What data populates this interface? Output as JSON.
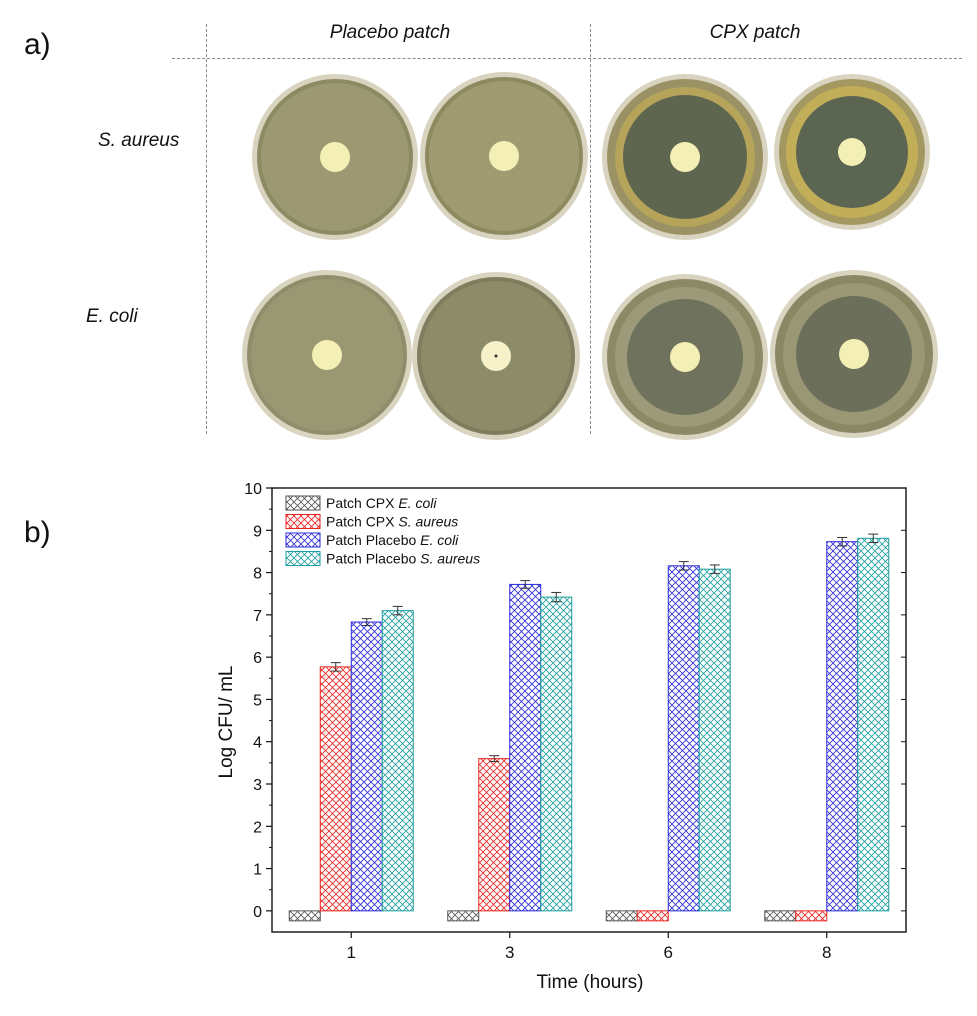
{
  "panel_a": {
    "label": "a)",
    "columns": [
      "Placebo patch",
      "CPX patch"
    ],
    "rows": [
      "S. aureus",
      "E. coli"
    ]
  },
  "panel_b": {
    "label": "b)"
  },
  "chart_data": {
    "type": "bar",
    "title": "",
    "categories": [
      "1",
      "3",
      "6",
      "8"
    ],
    "xlabel": "Time (hours)",
    "ylabel": "Log CFU/ mL",
    "ylim": [
      -0.5,
      10
    ],
    "yticks": [
      0,
      1,
      2,
      3,
      4,
      5,
      6,
      7,
      8,
      9,
      10
    ],
    "legend_position": "top-left",
    "grid": false,
    "series": [
      {
        "name": "Patch CPX E. coli",
        "name_plain": "Patch CPX ",
        "name_italic": "E. coli",
        "values": [
          0,
          0,
          0,
          0
        ],
        "errors": [
          0,
          0,
          0,
          0
        ],
        "color": "#555555"
      },
      {
        "name": "Patch CPX S. aureus",
        "name_plain": "Patch CPX ",
        "name_italic": "S. aureus",
        "values": [
          5.77,
          3.6,
          0,
          0
        ],
        "errors": [
          0.1,
          0.07,
          0,
          0
        ],
        "color": "#e8231f"
      },
      {
        "name": "Patch Placebo E. coli",
        "name_plain": "Patch Placebo ",
        "name_italic": "E. coli",
        "values": [
          6.83,
          7.72,
          8.16,
          8.73
        ],
        "errors": [
          0.08,
          0.09,
          0.1,
          0.1
        ],
        "color": "#2a2ad8"
      },
      {
        "name": "Patch Placebo S. aureus",
        "name_plain": "Patch Placebo ",
        "name_italic": "S. aureus",
        "values": [
          7.1,
          7.42,
          8.08,
          8.81
        ],
        "errors": [
          0.1,
          0.11,
          0.1,
          0.1
        ],
        "color": "#1f9e9e"
      }
    ]
  }
}
